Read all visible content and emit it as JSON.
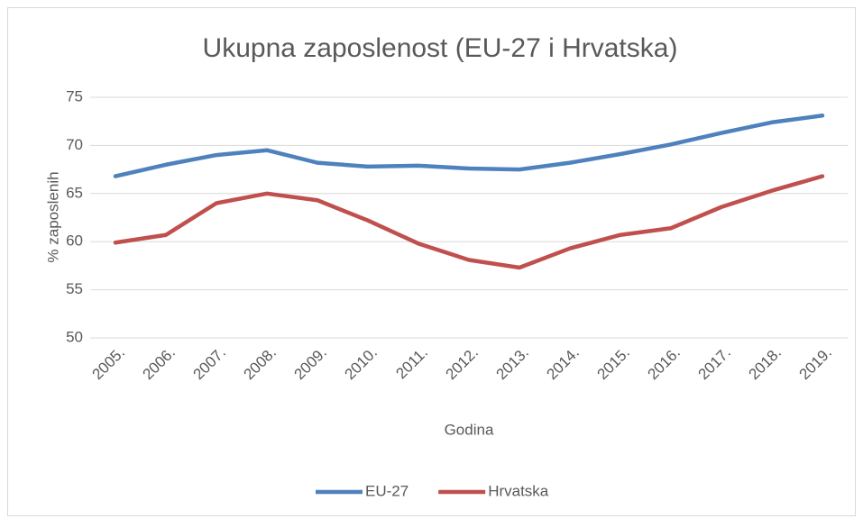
{
  "chart_data": {
    "type": "line",
    "title": "Ukupna zaposlenost (EU-27 i Hrvatska)",
    "x_label": "Godina",
    "y_label": "% zaposlenih",
    "categories": [
      "2005.",
      "2006.",
      "2007.",
      "2008.",
      "2009.",
      "2010.",
      "2011.",
      "2012.",
      "2013.",
      "2014.",
      "2015.",
      "2016.",
      "2017.",
      "2018.",
      "2019."
    ],
    "series": [
      {
        "name": "EU-27",
        "color": "#4f81bd",
        "values": [
          66.8,
          68.0,
          69.0,
          69.5,
          68.2,
          67.8,
          67.9,
          67.6,
          67.5,
          68.2,
          69.1,
          70.1,
          71.3,
          72.4,
          73.1
        ]
      },
      {
        "name": "Hrvatska",
        "color": "#c0504d",
        "values": [
          59.9,
          60.7,
          64.0,
          65.0,
          64.3,
          62.2,
          59.8,
          58.1,
          57.3,
          59.3,
          60.7,
          61.4,
          63.6,
          65.3,
          66.8
        ]
      }
    ],
    "ylim": [
      50,
      75
    ],
    "yticks": [
      50,
      55,
      60,
      65,
      70,
      75
    ],
    "grid": true,
    "legend": "bottom"
  }
}
